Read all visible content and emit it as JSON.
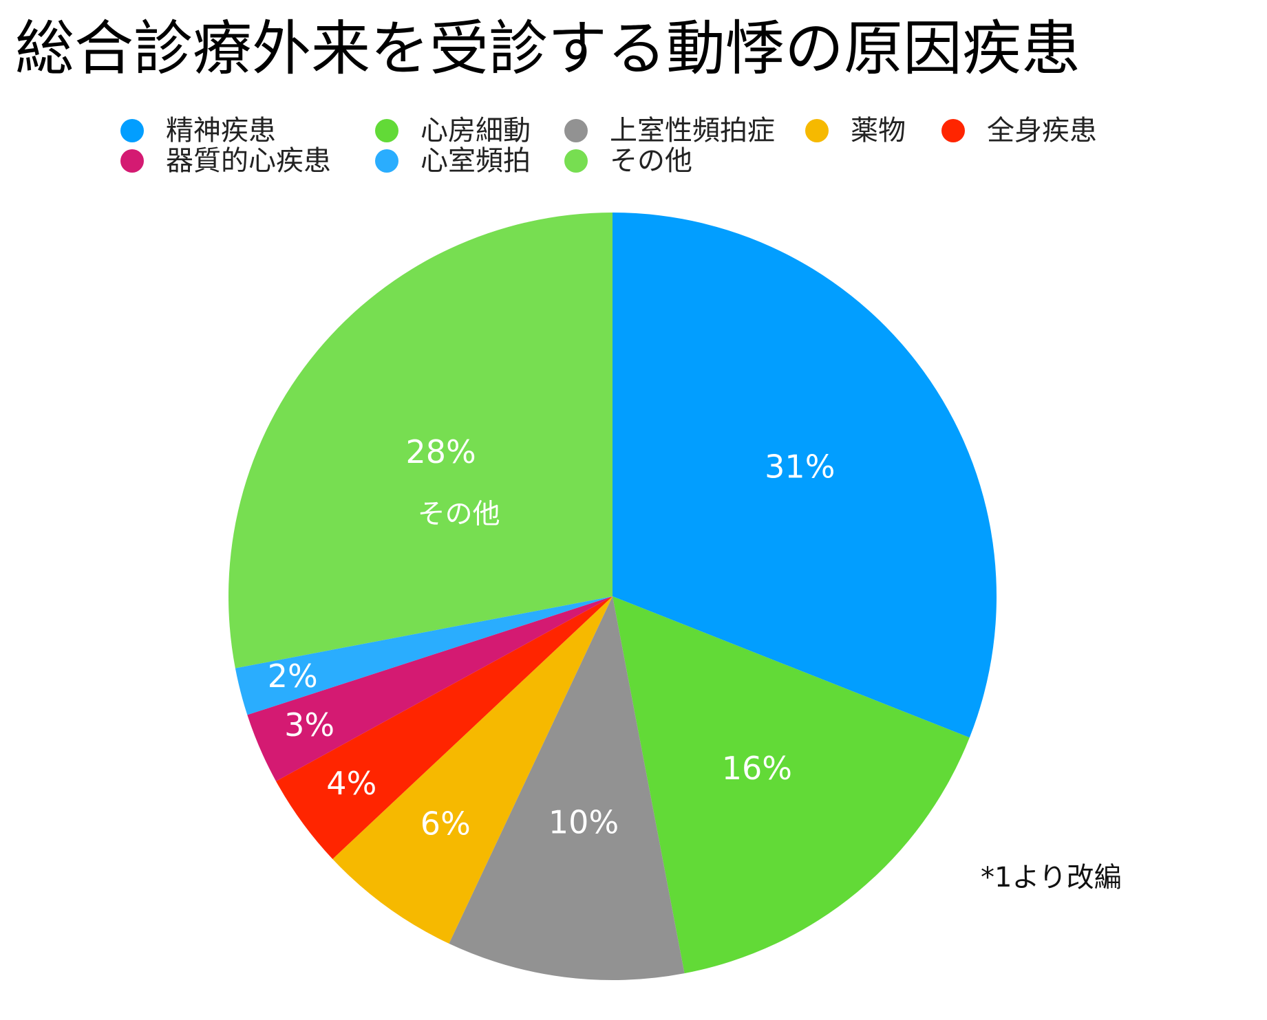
{
  "chart_data": {
    "type": "pie",
    "title": "総合診療外来を受診する動悸の原因疾患",
    "legend_placement": "top",
    "slices": [
      {
        "label": "精神疾患",
        "value": 31,
        "value_label": "31%",
        "color": "#029EFF"
      },
      {
        "label": "心房細動",
        "value": 16,
        "value_label": "16%",
        "color": "#62DA37"
      },
      {
        "label": "上室性頻拍症",
        "value": 10,
        "value_label": "10%",
        "color": "#929292"
      },
      {
        "label": "薬物",
        "value": 6,
        "value_label": "6%",
        "color": "#F6B900"
      },
      {
        "label": "全身疾患",
        "value": 4,
        "value_label": "4%",
        "color": "#FF2500"
      },
      {
        "label": "器質的心疾患",
        "value": 3,
        "value_label": "3%",
        "color": "#D41A72"
      },
      {
        "label": "心室頻拍",
        "value": 2,
        "value_label": "2%",
        "color": "#2AADFE"
      },
      {
        "label": "その他",
        "value": 28,
        "value_label": "28%",
        "color": "#77DE51",
        "inner_label": "その他"
      }
    ],
    "annotation": "*1より改編"
  }
}
